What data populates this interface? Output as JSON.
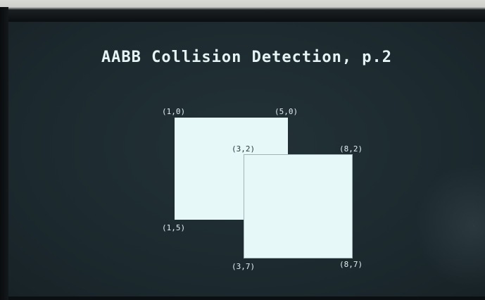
{
  "slide": {
    "title": "AABB Collision Detection, p.2"
  },
  "box_a": {
    "top_left": "(1,0)",
    "top_right": "(5,0)",
    "bottom_left": "(1,5)"
  },
  "box_b": {
    "top_left": "(3,2)",
    "top_right": "(8,2)",
    "bottom_left": "(3,7)",
    "bottom_right": "(8,7)"
  },
  "colors": {
    "screen_background": "#1d2b30",
    "box_fill": "#e6f8f8",
    "text": "#e6f3f4"
  }
}
